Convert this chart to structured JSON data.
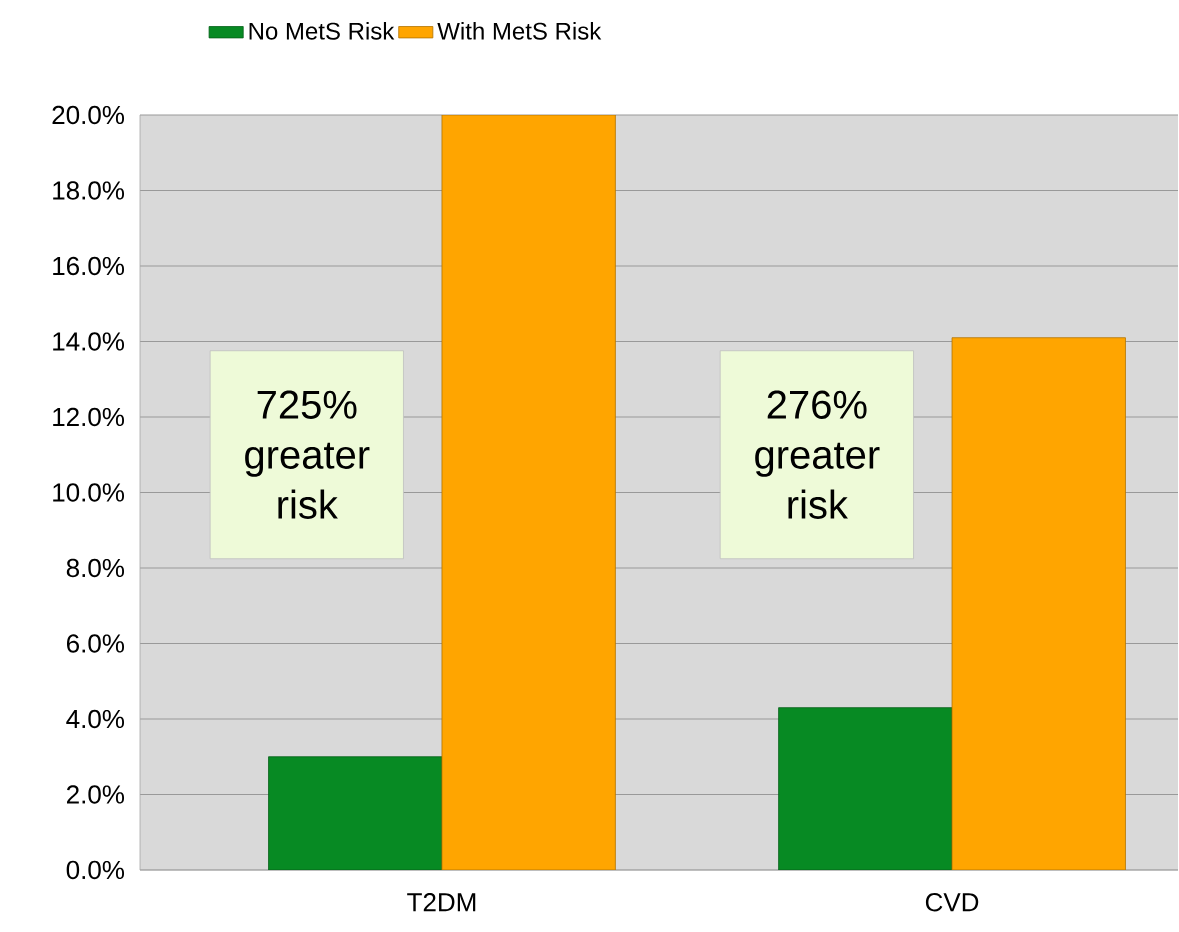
{
  "chart_data": {
    "type": "bar",
    "categories": [
      "T2DM",
      "CVD"
    ],
    "series": [
      {
        "name": "No MetS Risk",
        "color": "#078a23",
        "values": [
          3.0,
          4.3
        ]
      },
      {
        "name": "With MetS Risk",
        "color": "#ffa500",
        "values": [
          20.0,
          14.1
        ]
      }
    ],
    "ylim": [
      0,
      20
    ],
    "yticks": [
      {
        "value": 0,
        "label": "0.0%"
      },
      {
        "value": 2,
        "label": "2.0%"
      },
      {
        "value": 4,
        "label": "4.0%"
      },
      {
        "value": 6,
        "label": "6.0%"
      },
      {
        "value": 8,
        "label": "8.0%"
      },
      {
        "value": 10,
        "label": "10.0%"
      },
      {
        "value": 12,
        "label": "12.0%"
      },
      {
        "value": 14,
        "label": "14.0%"
      },
      {
        "value": 16,
        "label": "16.0%"
      },
      {
        "value": 18,
        "label": "18.0%"
      },
      {
        "value": 20,
        "label": "20.0%"
      }
    ],
    "grid": "y",
    "legend": "top",
    "annotations": [
      "725% greater risk",
      "276% greater risk"
    ]
  }
}
